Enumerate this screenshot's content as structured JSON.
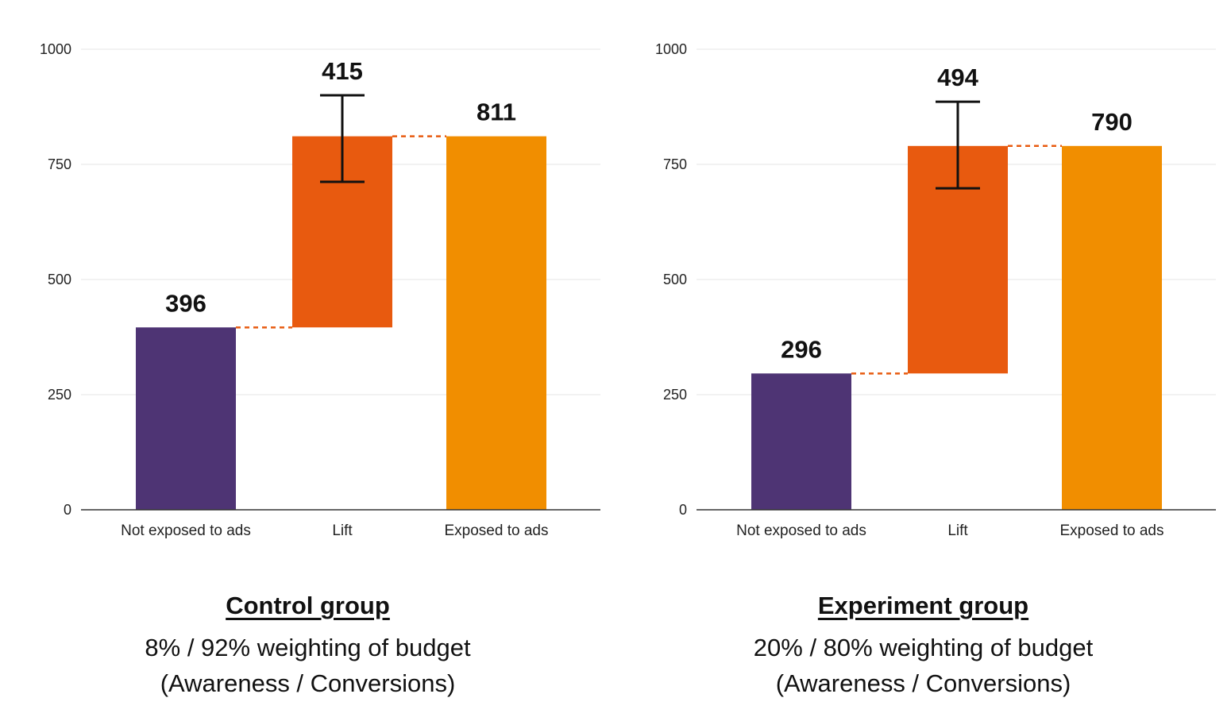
{
  "chart_data": [
    {
      "type": "bar",
      "subtype": "waterfall",
      "categories": [
        "Not exposed to ads",
        "Lift",
        "Exposed to ads"
      ],
      "values": [
        396,
        415,
        811
      ],
      "data_labels": [
        "396",
        "415",
        "811"
      ],
      "error_bar": {
        "category": "Lift",
        "low": 712,
        "high": 900
      },
      "ylim": [
        0,
        1000
      ],
      "yticks": [
        "0",
        "250",
        "500",
        "750",
        "1000"
      ],
      "grid": true,
      "caption": {
        "title": "Control group",
        "line1": "8% / 92% weighting of budget",
        "line2": "(Awareness / Conversions)"
      }
    },
    {
      "type": "bar",
      "subtype": "waterfall",
      "categories": [
        "Not exposed to ads",
        "Lift",
        "Exposed to ads"
      ],
      "values": [
        296,
        494,
        790
      ],
      "data_labels": [
        "296",
        "494",
        "790"
      ],
      "error_bar": {
        "category": "Lift",
        "low": 698,
        "high": 886
      },
      "ylim": [
        0,
        1000
      ],
      "yticks": [
        "0",
        "250",
        "500",
        "750",
        "1000"
      ],
      "grid": true,
      "caption": {
        "title": "Experiment group",
        "line1": "20% / 80% weighting of budget",
        "line2": "(Awareness / Conversions)"
      }
    }
  ],
  "colors": {
    "not_exposed": "#4e3474",
    "lift": "#e85a0f",
    "exposed": "#f18e00",
    "connector": "#e85a0f",
    "gridline": "#eeeeee",
    "axis": "#333333",
    "error_bar": "#111111"
  }
}
